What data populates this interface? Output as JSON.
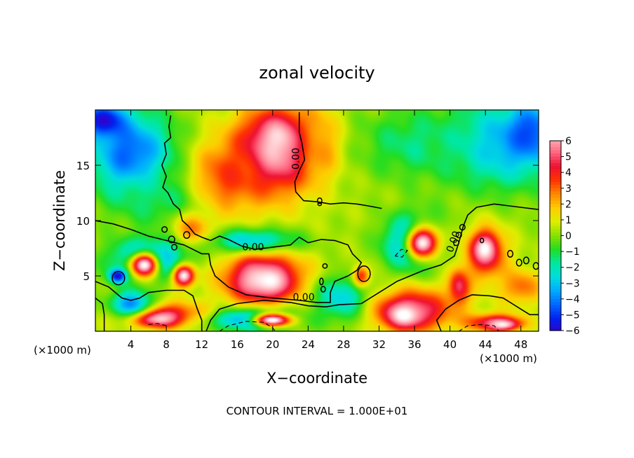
{
  "chart_data": {
    "type": "heatmap",
    "title": "zonal velocity",
    "xlabel": "X−coordinate",
    "ylabel": "Z−coordinate",
    "x_unit_note_left": "(×1000 m)",
    "x_unit_note_right": "(×1000 m)",
    "footer": "CONTOUR INTERVAL = 1.000E+01",
    "xlim": [
      0,
      50
    ],
    "ylim": [
      0,
      20
    ],
    "x_ticks": [
      4,
      8,
      12,
      16,
      20,
      24,
      28,
      32,
      36,
      40,
      44,
      48
    ],
    "y_ticks": [
      5,
      10,
      15
    ],
    "colorbar": {
      "range": [
        -6,
        6
      ],
      "ticks": [
        "6",
        "5",
        "4",
        "3",
        "2",
        "1",
        "0",
        "−1",
        "−2",
        "−3",
        "−4",
        "−5",
        "−6"
      ],
      "colors": [
        "#7a1fa2",
        "#3300cc",
        "#0022ee",
        "#0066ff",
        "#00aaff",
        "#00dddd",
        "#00e8a0",
        "#22dd22",
        "#88e000",
        "#ddee00",
        "#ffcc00",
        "#ff8800",
        "#ff3300",
        "#ee1133",
        "#ff6680",
        "#ffb0b8",
        "#ffffff"
      ]
    },
    "contour_labels": [
      {
        "text": "0.00",
        "x": 23.0,
        "y": 15.6,
        "rotate": -90
      },
      {
        "text": "0.00",
        "x": 17.8,
        "y": 7.3,
        "rotate": 0
      },
      {
        "text": "0.00",
        "x": 23.5,
        "y": 2.8,
        "rotate": 0
      },
      {
        "text": "0.00",
        "x": 40.7,
        "y": 8.0,
        "rotate": -70
      }
    ],
    "field_blobs": [
      {
        "x": 25,
        "y": 10,
        "rx": 40,
        "ry": 14,
        "v": 0.3
      },
      {
        "x": 4,
        "y": 16,
        "rx": 6,
        "ry": 5,
        "v": -4.5
      },
      {
        "x": 1,
        "y": 19,
        "rx": 3,
        "ry": 2,
        "v": -6
      },
      {
        "x": 46,
        "y": 17,
        "rx": 8,
        "ry": 5,
        "v": -3.5
      },
      {
        "x": 49,
        "y": 18,
        "rx": 3,
        "ry": 3,
        "v": -5
      },
      {
        "x": 36,
        "y": 17,
        "rx": 8,
        "ry": 4,
        "v": -1.5
      },
      {
        "x": 8,
        "y": 12,
        "rx": 6,
        "ry": 3,
        "v": -1.5
      },
      {
        "x": 20,
        "y": 16,
        "rx": 6,
        "ry": 5,
        "v": 5.5
      },
      {
        "x": 21,
        "y": 17,
        "rx": 4,
        "ry": 3,
        "v": 7
      },
      {
        "x": 15,
        "y": 14,
        "rx": 5,
        "ry": 4,
        "v": 3.5
      },
      {
        "x": 25,
        "y": 17,
        "rx": 3,
        "ry": 4,
        "v": 2.5
      },
      {
        "x": 11,
        "y": 9,
        "rx": 3,
        "ry": 2,
        "v": 3
      },
      {
        "x": 6,
        "y": 6.5,
        "rx": 5,
        "ry": 2.2,
        "v": -5
      },
      {
        "x": 5.5,
        "y": 6,
        "rx": 2.2,
        "ry": 1.5,
        "v": 7
      },
      {
        "x": 10,
        "y": 5,
        "rx": 1.5,
        "ry": 1.2,
        "v": 7
      },
      {
        "x": 2.5,
        "y": 5,
        "rx": 1.2,
        "ry": 0.8,
        "v": -6
      },
      {
        "x": 18,
        "y": 8,
        "rx": 6,
        "ry": 1.5,
        "v": -4
      },
      {
        "x": 19,
        "y": 5,
        "rx": 6,
        "ry": 3,
        "v": 4.5
      },
      {
        "x": 19,
        "y": 4.5,
        "rx": 4,
        "ry": 2,
        "v": 7
      },
      {
        "x": 8,
        "y": 1.5,
        "rx": 6,
        "ry": 1.5,
        "v": 4
      },
      {
        "x": 7,
        "y": 1.2,
        "rx": 3,
        "ry": 0.9,
        "v": 7
      },
      {
        "x": 18,
        "y": 1.0,
        "rx": 6,
        "ry": 1.2,
        "v": -4.5
      },
      {
        "x": 20,
        "y": 1.0,
        "rx": 3,
        "ry": 0.8,
        "v": 7
      },
      {
        "x": 28,
        "y": 3,
        "rx": 4,
        "ry": 2.5,
        "v": -3
      },
      {
        "x": 30,
        "y": 5,
        "rx": 1.2,
        "ry": 1.2,
        "v": 4
      },
      {
        "x": 36,
        "y": 8,
        "rx": 4,
        "ry": 3,
        "v": -5
      },
      {
        "x": 37,
        "y": 8,
        "rx": 2.5,
        "ry": 2,
        "v": 7
      },
      {
        "x": 36,
        "y": 2,
        "rx": 6,
        "ry": 2.5,
        "v": 4.5
      },
      {
        "x": 35,
        "y": 1.5,
        "rx": 3,
        "ry": 1.5,
        "v": 7
      },
      {
        "x": 44,
        "y": 7,
        "rx": 3,
        "ry": 3,
        "v": 4.5
      },
      {
        "x": 44,
        "y": 7.5,
        "rx": 1.5,
        "ry": 1.5,
        "v": 7
      },
      {
        "x": 41,
        "y": 4,
        "rx": 1.5,
        "ry": 2,
        "v": 5
      },
      {
        "x": 45,
        "y": 0.8,
        "rx": 4,
        "ry": 1,
        "v": 5
      },
      {
        "x": 46,
        "y": 0.6,
        "rx": 2,
        "ry": 0.6,
        "v": 7
      },
      {
        "x": 48,
        "y": 4,
        "rx": 3,
        "ry": 2,
        "v": 3
      },
      {
        "x": 4,
        "y": 2.5,
        "rx": 3,
        "ry": 1.5,
        "v": -4
      }
    ],
    "contours_solid": [
      [
        [
          8.5,
          19.5
        ],
        [
          8.3,
          18.5
        ],
        [
          8.5,
          17.5
        ],
        [
          7.8,
          17
        ],
        [
          8,
          16
        ],
        [
          7.5,
          15
        ],
        [
          8,
          14
        ],
        [
          7.6,
          13
        ],
        [
          8.2,
          12.5
        ],
        [
          8.8,
          11.5
        ],
        [
          9.5,
          11
        ],
        [
          9.8,
          10
        ],
        [
          10.5,
          9.5
        ],
        [
          11.2,
          8.8
        ],
        [
          12,
          8.5
        ],
        [
          13,
          8.2
        ],
        [
          14,
          8.6
        ],
        [
          15,
          8.3
        ],
        [
          16.5,
          7.7
        ],
        [
          18,
          7.4
        ],
        [
          20,
          7.6
        ],
        [
          22,
          7.8
        ],
        [
          23,
          8.5
        ],
        [
          24,
          8
        ],
        [
          25.5,
          8.3
        ],
        [
          27,
          8.2
        ],
        [
          28.5,
          7.8
        ],
        [
          29,
          7
        ],
        [
          30,
          6.2
        ],
        [
          29.5,
          5.5
        ],
        [
          28.5,
          5
        ],
        [
          27,
          4.5
        ],
        [
          26.5,
          3.5
        ],
        [
          26.5,
          2.6
        ],
        [
          25,
          2.6
        ],
        [
          23,
          2.8
        ],
        [
          20,
          3
        ],
        [
          17,
          3.3
        ],
        [
          15,
          4
        ],
        [
          13.5,
          5
        ],
        [
          13,
          6
        ],
        [
          12.8,
          7
        ],
        [
          12,
          7
        ],
        [
          10,
          7.8
        ],
        [
          8,
          8.2
        ],
        [
          6,
          8.6
        ],
        [
          4,
          9.2
        ],
        [
          2,
          9.7
        ],
        [
          0,
          10
        ]
      ],
      [
        [
          12.5,
          0
        ],
        [
          13,
          1
        ],
        [
          14,
          2
        ],
        [
          16,
          2.5
        ],
        [
          19,
          2.8
        ],
        [
          22,
          2.6
        ],
        [
          24,
          2.3
        ],
        [
          26,
          2.2
        ],
        [
          27.5,
          2.4
        ],
        [
          30,
          2.5
        ],
        [
          32,
          3.5
        ],
        [
          34,
          4.5
        ],
        [
          37,
          5.5
        ],
        [
          39,
          6
        ],
        [
          40.5,
          6.8
        ],
        [
          41,
          8
        ],
        [
          41.5,
          9.5
        ],
        [
          42,
          10.5
        ],
        [
          43,
          11.2
        ],
        [
          45,
          11.5
        ],
        [
          47,
          11.3
        ],
        [
          50,
          11
        ]
      ],
      [
        [
          0,
          4.5
        ],
        [
          1.5,
          4
        ],
        [
          3,
          3
        ],
        [
          4,
          2.8
        ],
        [
          5,
          3
        ],
        [
          6,
          3.5
        ],
        [
          8,
          3.7
        ],
        [
          10,
          3.7
        ],
        [
          11,
          3.2
        ],
        [
          11.5,
          2
        ],
        [
          12,
          1
        ],
        [
          12,
          0
        ]
      ],
      [
        [
          0,
          3
        ],
        [
          0.8,
          2.5
        ],
        [
          1,
          1.5
        ],
        [
          1,
          0
        ]
      ],
      [
        [
          23,
          19.8
        ],
        [
          23,
          18
        ],
        [
          23.3,
          17
        ],
        [
          23.6,
          15.5
        ],
        [
          23,
          14.5
        ],
        [
          22.5,
          13.5
        ],
        [
          22.6,
          12.6
        ],
        [
          23.5,
          11.8
        ],
        [
          25,
          11.7
        ],
        [
          26.5,
          11.5
        ],
        [
          28,
          11.6
        ],
        [
          29.5,
          11.5
        ],
        [
          31,
          11.3
        ],
        [
          32.3,
          11.1
        ]
      ],
      [
        [
          39,
          0
        ],
        [
          38.5,
          1
        ],
        [
          39.5,
          2
        ],
        [
          41,
          2.8
        ],
        [
          42.5,
          3.3
        ],
        [
          44.5,
          3.2
        ],
        [
          46,
          3
        ],
        [
          47,
          2.5
        ],
        [
          48,
          2
        ],
        [
          49,
          1.5
        ],
        [
          50,
          1.5
        ]
      ]
    ],
    "contour_loops": [
      {
        "x": 2.6,
        "y": 4.8,
        "rx": 0.7,
        "ry": 0.6
      },
      {
        "x": 7.8,
        "y": 9.2,
        "rx": 0.3,
        "ry": 0.25
      },
      {
        "x": 8.6,
        "y": 8.3,
        "rx": 0.35,
        "ry": 0.3
      },
      {
        "x": 8.9,
        "y": 7.6,
        "rx": 0.3,
        "ry": 0.25
      },
      {
        "x": 10.3,
        "y": 8.7,
        "rx": 0.35,
        "ry": 0.3
      },
      {
        "x": 25.3,
        "y": 11.8,
        "rx": 0.25,
        "ry": 0.25
      },
      {
        "x": 25.3,
        "y": 11.5,
        "rx": 0.2,
        "ry": 0.15
      },
      {
        "x": 25.9,
        "y": 5.9,
        "rx": 0.25,
        "ry": 0.2
      },
      {
        "x": 25.5,
        "y": 4.5,
        "rx": 0.2,
        "ry": 0.3
      },
      {
        "x": 25.7,
        "y": 3.8,
        "rx": 0.25,
        "ry": 0.25
      },
      {
        "x": 30.3,
        "y": 5.2,
        "rx": 0.7,
        "ry": 0.7
      },
      {
        "x": 43.6,
        "y": 8.2,
        "rx": 0.2,
        "ry": 0.2
      },
      {
        "x": 46.8,
        "y": 7.0,
        "rx": 0.3,
        "ry": 0.3
      },
      {
        "x": 47.8,
        "y": 6.2,
        "rx": 0.3,
        "ry": 0.3
      },
      {
        "x": 48.6,
        "y": 6.4,
        "rx": 0.3,
        "ry": 0.3
      },
      {
        "x": 49.7,
        "y": 5.9,
        "rx": 0.3,
        "ry": 0.3
      },
      {
        "x": 41.4,
        "y": 9.4,
        "rx": 0.3,
        "ry": 0.25
      },
      {
        "x": 41.0,
        "y": 8.7,
        "rx": 0.3,
        "ry": 0.25
      },
      {
        "x": 40.7,
        "y": 8.0,
        "rx": 0.3,
        "ry": 0.25
      }
    ],
    "contours_dashed": [
      [
        [
          14,
          0
        ],
        [
          15,
          0.5
        ],
        [
          17,
          0.9
        ],
        [
          19,
          0.8
        ],
        [
          20,
          0.3
        ],
        [
          20.3,
          0
        ]
      ],
      [
        [
          33.8,
          6.8
        ],
        [
          34.5,
          7.4
        ],
        [
          35.2,
          7.3
        ],
        [
          34.6,
          6.7
        ],
        [
          33.8,
          6.8
        ]
      ],
      [
        [
          41,
          0
        ],
        [
          42,
          0.5
        ],
        [
          43.5,
          0.6
        ],
        [
          45,
          0.5
        ],
        [
          45.5,
          0
        ]
      ],
      [
        [
          6,
          0.6
        ],
        [
          7,
          0.7
        ],
        [
          8,
          0.5
        ]
      ]
    ]
  }
}
